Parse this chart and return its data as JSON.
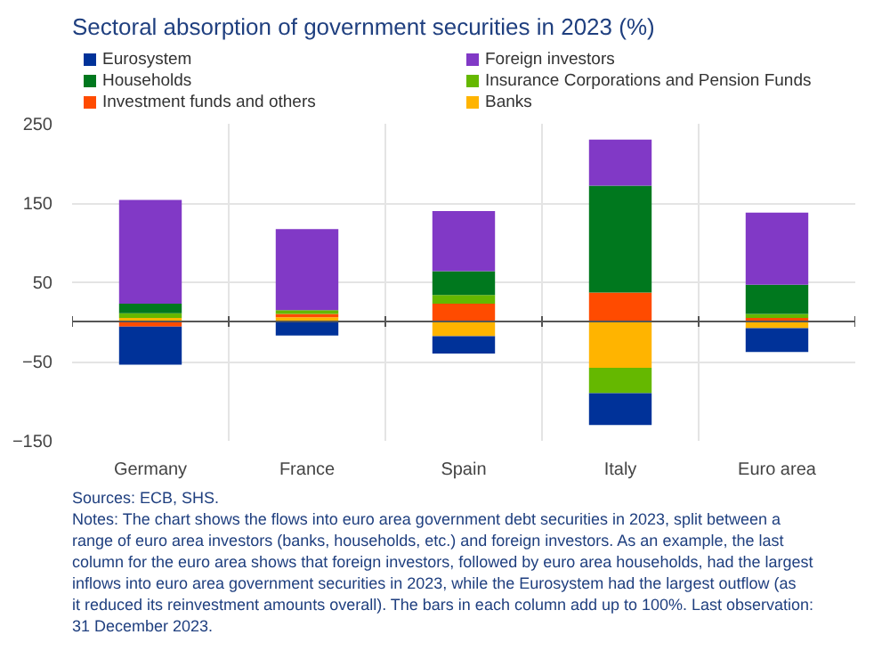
{
  "chart_data": {
    "type": "bar",
    "title": "Sectoral absorption of government securities in 2023 (%)",
    "categories": [
      "Germany",
      "France",
      "Spain",
      "Italy",
      "Euro area"
    ],
    "stacked": true,
    "series": [
      {
        "name": "Banks",
        "color": "#ffb400",
        "values": [
          5,
          6,
          -18,
          -58,
          -8
        ]
      },
      {
        "name": "Investment funds and others",
        "color": "#ff4b00",
        "values": [
          -6,
          4,
          23,
          37,
          5
        ]
      },
      {
        "name": "Insurance Corporations and Pension Funds",
        "color": "#65b800",
        "values": [
          6,
          5,
          11,
          -32,
          5
        ]
      },
      {
        "name": "Households",
        "color": "#00781e",
        "values": [
          12,
          0,
          30,
          135,
          37
        ]
      },
      {
        "name": "Foreign investors",
        "color": "#8139c6",
        "values": [
          131,
          102,
          76,
          58,
          91
        ]
      },
      {
        "name": "Eurosystem",
        "color": "#003299",
        "values": [
          -48,
          -17,
          -22,
          -40,
          -30
        ]
      }
    ],
    "ylim": [
      -150,
      250
    ],
    "yticks": [
      -150,
      -50,
      50,
      150,
      250
    ],
    "grid": true,
    "legend": "top",
    "annotations": [
      "Sources: ECB, SHS.",
      "Notes: The chart shows the flows into euro area government debt securities in 2023, split between a range of euro area investors (banks, households, etc.) and foreign investors. As an example, the last column for the euro area shows that foreign investors, followed by euro area households, had the largest inflows into euro area government securities in 2023, while the Eurosystem had the largest outflow (as it reduced its reinvestment amounts overall). The bars in each column add up to 100%. Last observation: 31 December 2023."
    ]
  }
}
